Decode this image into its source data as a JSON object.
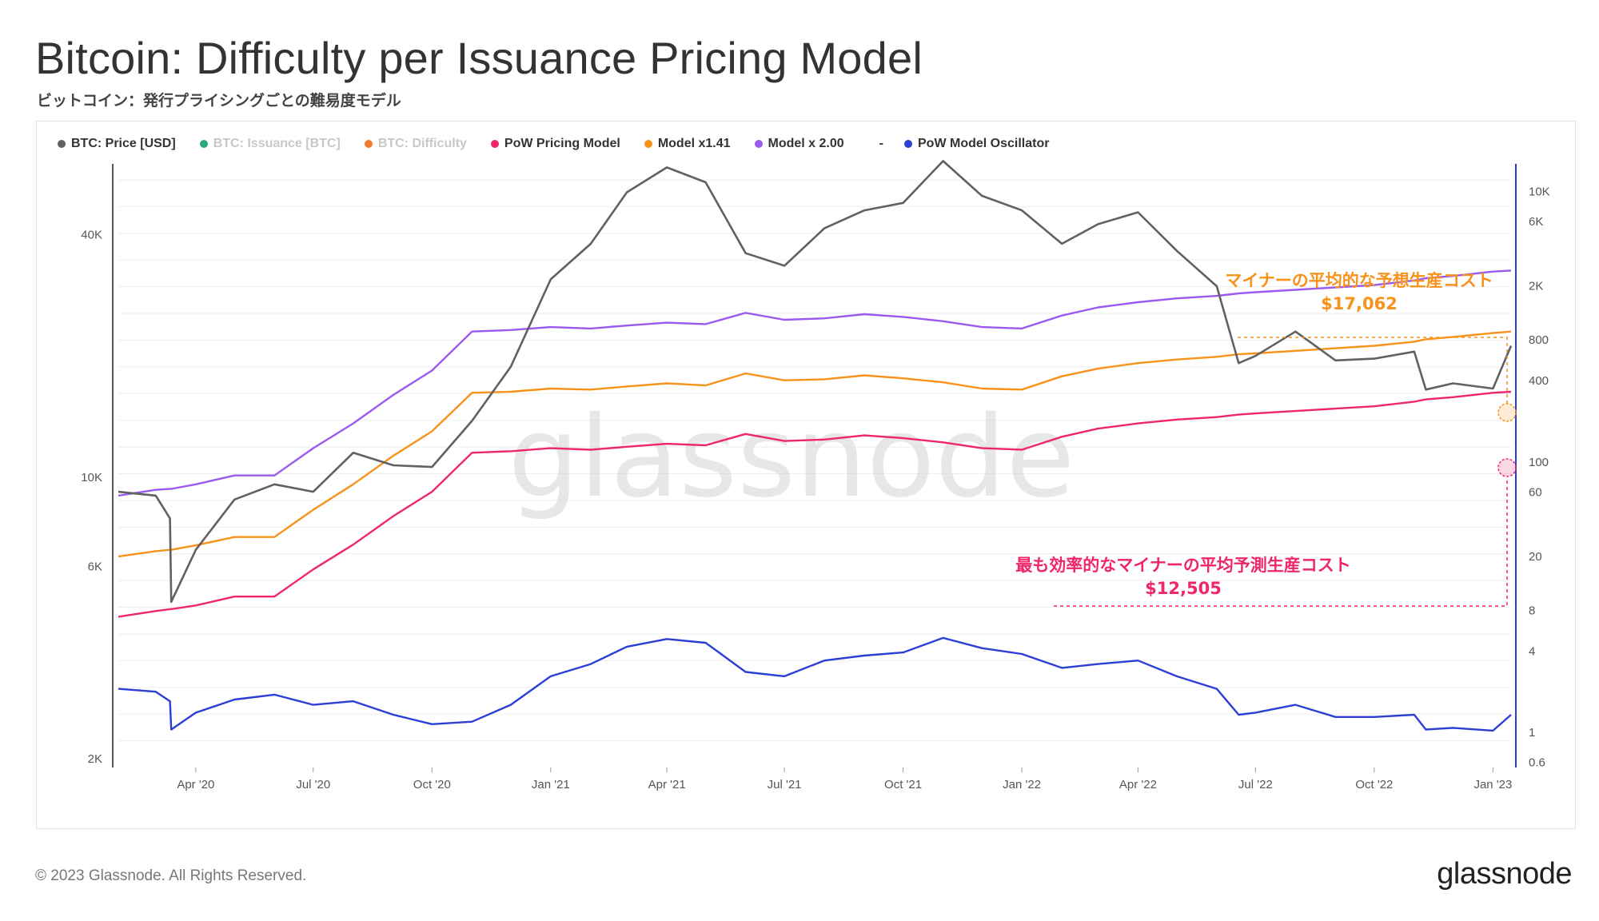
{
  "header": {
    "title": "Bitcoin: Difficulty per Issuance Pricing Model",
    "subtitle": "ビットコイン：発行プライシングごとの難易度モデル"
  },
  "legend": [
    {
      "label": "BTC: Price [USD]",
      "color": "#616161",
      "muted": false
    },
    {
      "label": "BTC: Issuance [BTC]",
      "color": "#2ca87f",
      "muted": true
    },
    {
      "label": "BTC: Difficulty",
      "color": "#f07a2c",
      "muted": true
    },
    {
      "label": "PoW Pricing Model",
      "color": "#f0266b",
      "muted": false
    },
    {
      "label": "Model x1.41",
      "color": "#f7931a",
      "muted": false
    },
    {
      "label": "Model x 2.00",
      "color": "#9b59f0",
      "muted": false
    },
    {
      "label": "-",
      "color": "",
      "muted": false,
      "separator": true
    },
    {
      "label": "PoW Model Oscillator",
      "color": "#2b3fd6",
      "muted": false
    }
  ],
  "watermark": "glassnode",
  "footer": {
    "copyright": "© 2023 Glassnode. All Rights Reserved.",
    "brand": "glassnode"
  },
  "colors": {
    "price": "#616161",
    "pow_model": "#f0266b",
    "model_141": "#f7931a",
    "model_200": "#9b59f0",
    "oscillator": "#2b3fd6",
    "annotation_orange": "#f7931a",
    "annotation_pink": "#f0266b"
  },
  "annotations": [
    {
      "line1": "マイナーの平均的な予想生産コスト",
      "line2": "$17,062",
      "color": "#f7931a"
    },
    {
      "line1": "最も効率的なマイナーの平均予測生産コスト",
      "line2": "$12,505",
      "color": "#f0266b"
    }
  ],
  "chart_data": {
    "type": "line",
    "x_tick_labels": [
      "Apr '20",
      "Jul '20",
      "Oct '20",
      "Jan '21",
      "Apr '21",
      "Jul '21",
      "Oct '21",
      "Jan '22",
      "Apr '22",
      "Jul '22",
      "Oct '22",
      "Jan '23"
    ],
    "x_tick_dates": [
      "2020-04-01",
      "2020-07-01",
      "2020-10-01",
      "2021-01-01",
      "2021-04-01",
      "2021-07-01",
      "2021-10-01",
      "2022-01-01",
      "2022-04-01",
      "2022-07-01",
      "2022-10-01",
      "2023-01-01"
    ],
    "x_range": [
      "2020-02-01",
      "2023-01-15"
    ],
    "y_left": {
      "scale": "log",
      "tick_labels": [
        "40K",
        "10K",
        "6K",
        "2K"
      ],
      "tick_values": [
        40000,
        10000,
        6000,
        2000
      ],
      "range": [
        1900,
        60000
      ]
    },
    "y_right": {
      "scale": "log",
      "tick_labels": [
        "10K",
        "6K",
        "2K",
        "800",
        "400",
        "100",
        "60",
        "20",
        "8",
        "4",
        "1",
        "0.6"
      ],
      "tick_values": [
        10000,
        6000,
        2000,
        800,
        400,
        100,
        60,
        20,
        8,
        4,
        1,
        0.6
      ],
      "range": [
        0.55,
        16000
      ]
    },
    "dates": [
      "2020-02-01",
      "2020-03-01",
      "2020-03-12",
      "2020-03-13",
      "2020-04-01",
      "2020-05-01",
      "2020-06-01",
      "2020-07-01",
      "2020-08-01",
      "2020-09-01",
      "2020-10-01",
      "2020-11-01",
      "2020-12-01",
      "2021-01-01",
      "2021-02-01",
      "2021-03-01",
      "2021-04-01",
      "2021-05-01",
      "2021-06-01",
      "2021-07-01",
      "2021-08-01",
      "2021-09-01",
      "2021-10-01",
      "2021-11-01",
      "2021-12-01",
      "2022-01-01",
      "2022-02-01",
      "2022-03-01",
      "2022-04-01",
      "2022-05-01",
      "2022-06-01",
      "2022-06-18",
      "2022-07-01",
      "2022-08-01",
      "2022-09-01",
      "2022-10-01",
      "2022-11-01",
      "2022-11-10",
      "2022-12-01",
      "2023-01-01",
      "2023-01-15"
    ],
    "series": [
      {
        "name": "BTC: Price [USD]",
        "axis": "left",
        "values": [
          9200,
          9000,
          7900,
          4900,
          6600,
          8800,
          9600,
          9200,
          11500,
          10700,
          10600,
          13800,
          18800,
          31000,
          38000,
          51000,
          58800,
          54000,
          36000,
          33500,
          41500,
          46000,
          48000,
          61000,
          50000,
          46000,
          38000,
          42500,
          45500,
          36500,
          29800,
          19200,
          20000,
          23000,
          19500,
          19700,
          20500,
          16500,
          17100,
          16600,
          21200
        ]
      },
      {
        "name": "PoW Pricing Model",
        "axis": "left",
        "values": [
          4500,
          4650,
          4700,
          4700,
          4800,
          5050,
          5050,
          5900,
          6800,
          8000,
          9200,
          11500,
          11600,
          11800,
          11700,
          11900,
          12100,
          12000,
          12800,
          12300,
          12400,
          12700,
          12500,
          12200,
          11800,
          11700,
          12600,
          13200,
          13600,
          13900,
          14100,
          14300,
          14400,
          14600,
          14800,
          15000,
          15400,
          15600,
          15800,
          16200,
          16300
        ]
      },
      {
        "name": "Model x1.41",
        "axis": "left",
        "values": [
          6350,
          6550,
          6600,
          6600,
          6770,
          7100,
          7100,
          8300,
          9600,
          11300,
          13000,
          16200,
          16300,
          16600,
          16500,
          16800,
          17100,
          16900,
          18100,
          17400,
          17500,
          17900,
          17600,
          17200,
          16600,
          16500,
          17800,
          18600,
          19200,
          19600,
          19900,
          20200,
          20300,
          20600,
          20900,
          21200,
          21700,
          22000,
          22300,
          22800,
          23000
        ]
      },
      {
        "name": "Model x 2.00",
        "axis": "left",
        "values": [
          9000,
          9300,
          9350,
          9350,
          9600,
          10100,
          10100,
          11800,
          13600,
          16000,
          18400,
          23000,
          23200,
          23600,
          23400,
          23800,
          24200,
          24000,
          25600,
          24600,
          24800,
          25400,
          25000,
          24400,
          23600,
          23400,
          25200,
          26400,
          27200,
          27800,
          28200,
          28600,
          28800,
          29200,
          29600,
          30000,
          30800,
          31200,
          31600,
          32400,
          32600
        ]
      },
      {
        "name": "PoW Model Oscillator",
        "axis": "right",
        "values": [
          2.1,
          2.0,
          1.7,
          1.05,
          1.4,
          1.75,
          1.9,
          1.6,
          1.7,
          1.35,
          1.15,
          1.2,
          1.6,
          2.6,
          3.2,
          4.3,
          4.9,
          4.6,
          2.8,
          2.6,
          3.4,
          3.7,
          3.9,
          5.0,
          4.2,
          3.8,
          3.0,
          3.2,
          3.4,
          2.6,
          2.1,
          1.35,
          1.4,
          1.6,
          1.3,
          1.3,
          1.35,
          1.05,
          1.08,
          1.03,
          1.35
        ]
      }
    ]
  }
}
